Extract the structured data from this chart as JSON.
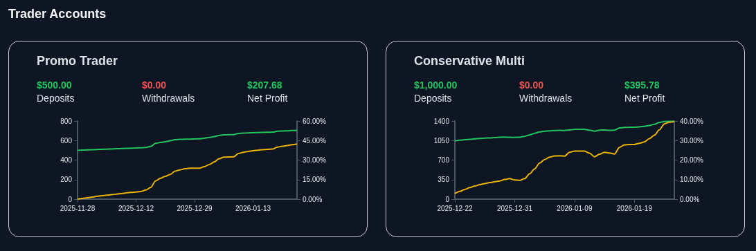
{
  "chart_data": [
    {
      "type": "line",
      "title": "Promo Trader",
      "subtitle": "Trader Accounts",
      "annotations": [
        "$500.00",
        "Deposits",
        "$0.00",
        "Withdrawals",
        "$207.68",
        "Net Profit"
      ],
      "categories": [
        "2025-11-28",
        null,
        null,
        null,
        null,
        null,
        null,
        null,
        null,
        null,
        null,
        null,
        "2025-12-12",
        null,
        null,
        null,
        null,
        null,
        null,
        null,
        null,
        null,
        null,
        null,
        "2025-12-29",
        null,
        null,
        null,
        null,
        null,
        null,
        null,
        null,
        null,
        null,
        null,
        "2026-01-13",
        null,
        null,
        null,
        null,
        null,
        null,
        null,
        null,
        null
      ],
      "series": [
        {
          "color": "#22c55e",
          "values": [
            500,
            502,
            504,
            506,
            508,
            510,
            512,
            514,
            516,
            518,
            520,
            522,
            524,
            526,
            530,
            540,
            572,
            580,
            588,
            598,
            608,
            612,
            614,
            615,
            616,
            618,
            625,
            632,
            640,
            652,
            658,
            660,
            660,
            672,
            676,
            678,
            680,
            682,
            684,
            685,
            686,
            695,
            698,
            700,
            703,
            705
          ]
        },
        {
          "color": "#eab308",
          "axis": "y2",
          "values": [
            0,
            0.5,
            1,
            1.6,
            2.2,
            2.6,
            3,
            3.4,
            3.9,
            4.3,
            4.8,
            5.2,
            5.5,
            5.9,
            7,
            9,
            14,
            16,
            17.5,
            19,
            21.5,
            22.5,
            23.3,
            23.7,
            23.7,
            23.8,
            25,
            26.5,
            28.5,
            31,
            32.2,
            32.4,
            32.5,
            35,
            36,
            36.7,
            37.2,
            37.6,
            38,
            38.2,
            38.5,
            40,
            40.6,
            41.2,
            41.8,
            42.3
          ]
        }
      ],
      "ylim": [
        0,
        800
      ],
      "yticks": [
        0,
        200,
        400,
        600,
        800
      ],
      "y2lim": [
        0,
        60
      ],
      "y2ticks": [
        {
          "value": 0,
          "label": "0.00%"
        },
        {
          "value": 15,
          "label": "15.00%"
        },
        {
          "value": 30,
          "label": "30.00%"
        },
        {
          "value": 45,
          "label": "45.00%"
        },
        {
          "value": 60,
          "label": "60.00%"
        }
      ]
    },
    {
      "type": "line",
      "title": "Conservative Multi",
      "annotations": [
        "$1,000.00",
        "Deposits",
        "$0.00",
        "Withdrawals",
        "$395.78",
        "Net Profit"
      ],
      "categories": [
        "2025-12-22",
        null,
        null,
        null,
        null,
        null,
        null,
        null,
        null,
        null,
        null,
        null,
        "2025-12-31",
        null,
        null,
        null,
        null,
        null,
        null,
        null,
        null,
        null,
        null,
        null,
        "2026-01-09",
        null,
        null,
        null,
        null,
        null,
        null,
        null,
        null,
        null,
        null,
        null,
        "2026-01-19",
        null,
        null,
        null,
        null,
        null,
        null,
        null,
        null
      ],
      "series": [
        {
          "color": "#22c55e",
          "values": [
            1045,
            1055,
            1065,
            1072,
            1080,
            1086,
            1092,
            1098,
            1104,
            1110,
            1112,
            1108,
            1106,
            1110,
            1125,
            1150,
            1180,
            1205,
            1218,
            1225,
            1230,
            1232,
            1230,
            1240,
            1250,
            1252,
            1250,
            1235,
            1218,
            1236,
            1240,
            1232,
            1235,
            1275,
            1285,
            1288,
            1290,
            1295,
            1305,
            1320,
            1340,
            1375,
            1390,
            1395,
            1398
          ]
        },
        {
          "color": "#eab308",
          "axis": "y2",
          "values": [
            2.8,
            4,
            5,
            5.9,
            6.7,
            7.4,
            8,
            8.5,
            8.9,
            9.3,
            10.1,
            10.5,
            9.8,
            9.6,
            10.5,
            13,
            15.5,
            18.5,
            20.3,
            21.5,
            22.1,
            22.2,
            22,
            24,
            24.6,
            24.6,
            24.6,
            23.5,
            21.7,
            23,
            24,
            23.6,
            23.1,
            26.5,
            27.8,
            28,
            28,
            28.6,
            29.3,
            31,
            32.7,
            35.5,
            38.5,
            39.4,
            39.6
          ]
        }
      ],
      "ylim": [
        0,
        1400
      ],
      "yticks": [
        0,
        350,
        700,
        1050,
        1400
      ],
      "y2lim": [
        0,
        40
      ],
      "y2ticks": [
        {
          "value": 0,
          "label": "0.00%"
        },
        {
          "value": 10,
          "label": "10.00%"
        },
        {
          "value": 20,
          "label": "20.00%"
        },
        {
          "value": 30,
          "label": "30.00%"
        },
        {
          "value": 40,
          "label": "40.00%"
        }
      ]
    }
  ]
}
